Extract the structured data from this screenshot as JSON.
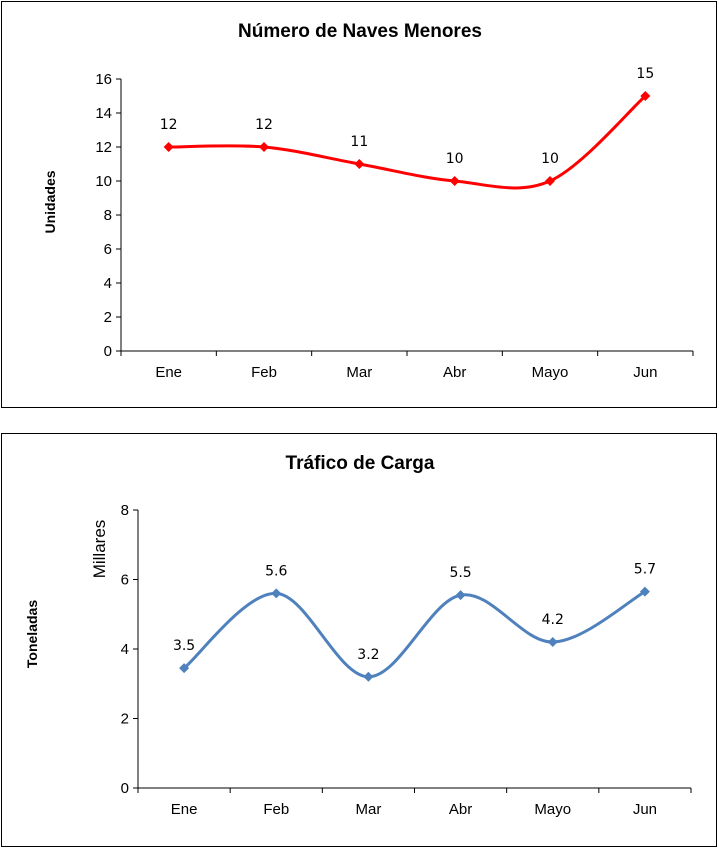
{
  "chart_data": [
    {
      "type": "line",
      "title": "Número de Naves Menores",
      "xlabel": "",
      "ylabel": "Unidades",
      "categories": [
        "Ene",
        "Feb",
        "Mar",
        "Abr",
        "Mayo",
        "Jun"
      ],
      "series": [
        {
          "values": [
            12,
            12,
            11,
            10,
            10,
            15
          ],
          "color": "#ff0000"
        }
      ],
      "data_labels": [
        "12",
        "12",
        "11",
        "10",
        "10",
        "15"
      ],
      "ylim": [
        0,
        16
      ],
      "yticks": [
        "0",
        "2",
        "4",
        "6",
        "8",
        "10",
        "12",
        "14",
        "16"
      ],
      "grid": false,
      "smooth": true,
      "marker": "diamond"
    },
    {
      "type": "line",
      "title": "Tráfico de Carga",
      "xlabel": "",
      "ylabel": "Toneladas",
      "unit_label": "Millares",
      "categories": [
        "Ene",
        "Feb",
        "Mar",
        "Abr",
        "Mayo",
        "Jun"
      ],
      "series": [
        {
          "values": [
            3.45,
            5.6,
            3.2,
            5.55,
            4.2,
            5.65
          ],
          "color": "#4f81bd"
        }
      ],
      "data_labels": [
        "3.5",
        "5.6",
        "3.2",
        "5.5",
        "4.2",
        "5.7"
      ],
      "ylim": [
        0,
        8
      ],
      "yticks": [
        "0",
        "2",
        "4",
        "6",
        "8"
      ],
      "grid": false,
      "smooth": true,
      "marker": "diamond"
    }
  ]
}
